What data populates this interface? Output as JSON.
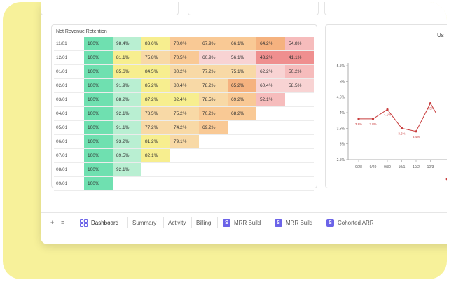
{
  "colors": {
    "frame_bg": "#f7f19a",
    "accent": "#6b63e8",
    "line": "#c83c3c"
  },
  "retention": {
    "title": "Net Revenue Retention",
    "rows": [
      {
        "label": "11/01",
        "cells": [
          "100%",
          "98.4%",
          "83.6%",
          "70.0%",
          "67.9%",
          "66.1%",
          "64.2%",
          "54.8%"
        ]
      },
      {
        "label": "12/01",
        "cells": [
          "100%",
          "81.1%",
          "75.8%",
          "70.5%",
          "60.9%",
          "56.1%",
          "43.2%",
          "41.1%"
        ]
      },
      {
        "label": "01/01",
        "cells": [
          "100%",
          "85.6%",
          "84.5%",
          "80.2%",
          "77.2%",
          "75.1%",
          "62.2%",
          "50.2%"
        ]
      },
      {
        "label": "02/01",
        "cells": [
          "100%",
          "91.9%",
          "85.2%",
          "80.4%",
          "78.2%",
          "65.2%",
          "60.4%",
          "58.5%"
        ]
      },
      {
        "label": "03/01",
        "cells": [
          "100%",
          "88.2%",
          "87.2%",
          "82.4%",
          "78.5%",
          "69.2%",
          "52.1%"
        ]
      },
      {
        "label": "04/01",
        "cells": [
          "100%",
          "92.1%",
          "78.5%",
          "75.2%",
          "70.2%",
          "68.2%"
        ]
      },
      {
        "label": "05/01",
        "cells": [
          "100%",
          "91.1%",
          "77.2%",
          "74.2%",
          "69.2%"
        ]
      },
      {
        "label": "06/01",
        "cells": [
          "100%",
          "93.2%",
          "81.2%",
          "79.1%"
        ]
      },
      {
        "label": "07/01",
        "cells": [
          "100%",
          "89.5%",
          "82.1%"
        ]
      },
      {
        "label": "08/01",
        "cells": [
          "100%",
          "92.1%"
        ]
      },
      {
        "label": "09/01",
        "cells": [
          "100%"
        ]
      }
    ]
  },
  "chart_title_partial": "Us",
  "chart_data": {
    "type": "line",
    "x": [
      "9/28",
      "9/29",
      "9/30",
      "10/1",
      "10/2",
      "10/3"
    ],
    "series": [
      {
        "values": [
          3.8,
          3.8,
          4.1,
          3.5,
          3.4,
          4.3
        ],
        "point_labels": [
          "3.8%",
          "3.8%",
          "4.1%",
          "3.5%",
          "3.4%",
          "4.3%"
        ]
      }
    ],
    "y_ticks": [
      "5.5%",
      "5%",
      "4.5%",
      "4%",
      "3.5%",
      "3%",
      "2.5%"
    ],
    "ylim": [
      2.5,
      5.5
    ],
    "grid": false
  },
  "tabs": {
    "add_symbol": "+",
    "menu_symbol": "≡",
    "items": [
      {
        "label": "Dashboard",
        "active": true,
        "icon": "dashboard-icon"
      },
      {
        "label": "Summary"
      },
      {
        "label": "Activity"
      },
      {
        "label": "Billing"
      },
      {
        "label": "MRR Build",
        "icon": "s-icon"
      },
      {
        "label": "MRR Build",
        "icon": "s-icon"
      },
      {
        "label": "Cohorted ARR",
        "icon": "s-icon"
      }
    ],
    "s_letter": "S"
  }
}
